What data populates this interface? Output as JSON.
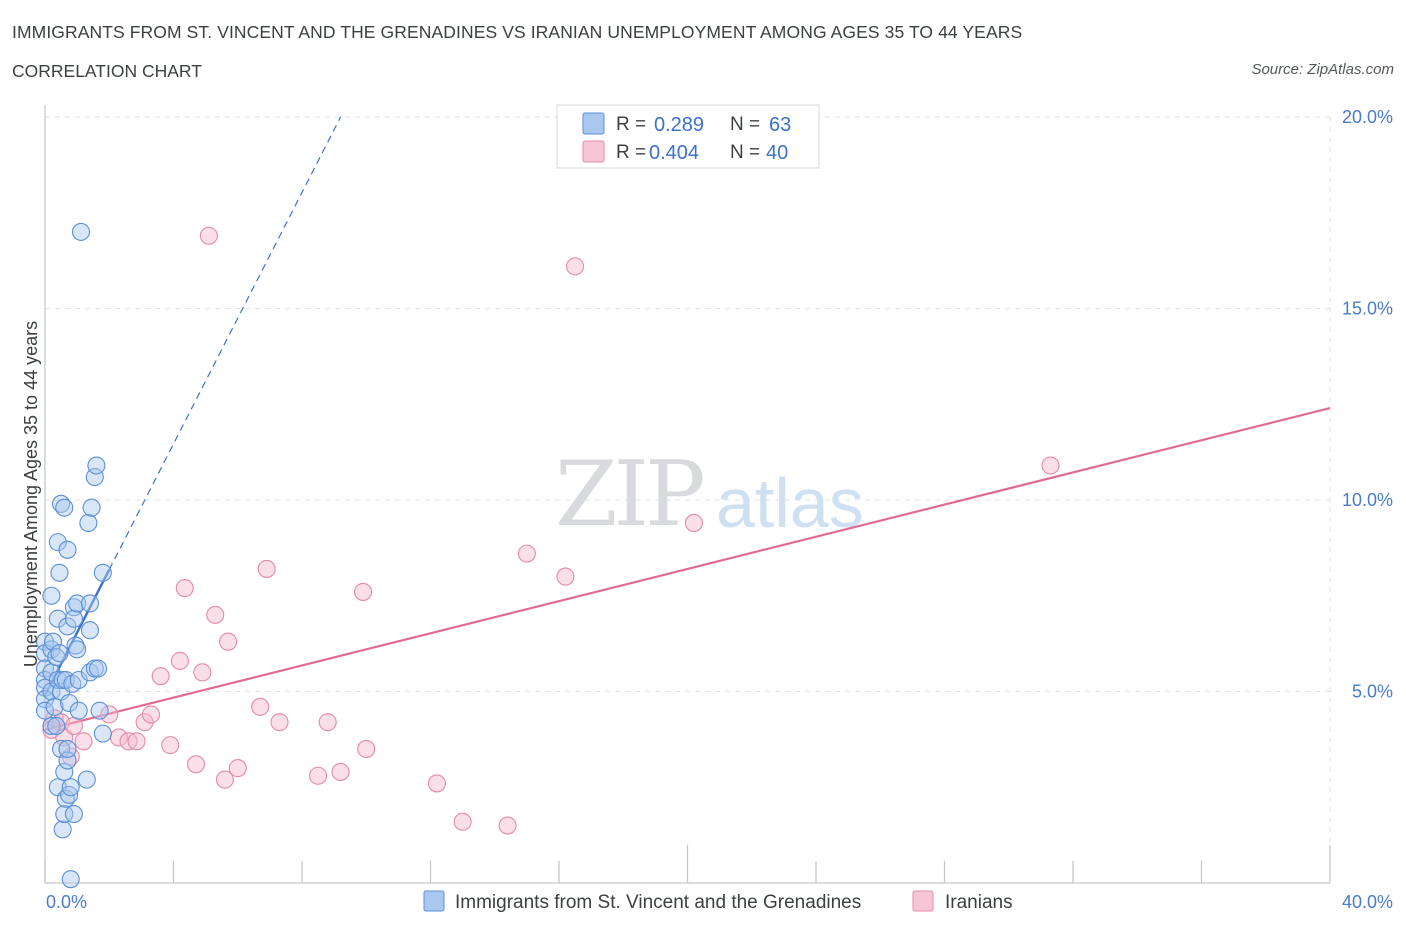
{
  "header": {
    "title": "IMMIGRANTS FROM ST. VINCENT AND THE GRENADINES VS IRANIAN UNEMPLOYMENT AMONG AGES 35 TO 44 YEARS",
    "subtitle": "CORRELATION CHART",
    "source": "Source: ZipAtlas.com"
  },
  "watermark": {
    "zip": "ZIP",
    "atlas": "atlas"
  },
  "colors": {
    "blue_fill": "#a8c8f0",
    "blue_stroke": "#5b8fd6",
    "blue_line": "#3a73d0",
    "pink_fill": "#f6b8cc",
    "pink_stroke": "#e58aa9",
    "pink_line": "#e06b93",
    "grid": "#dde1e6",
    "axis_text": "#4a7cc9"
  },
  "chart_data": {
    "type": "scatter",
    "title": "IMMIGRANTS FROM ST. VINCENT AND THE GRENADINES VS IRANIAN UNEMPLOYMENT AMONG AGES 35 TO 44 YEARS",
    "xlabel": "",
    "ylabel": "Unemployment Among Ages 35 to 44 years",
    "xlim": [
      0,
      40
    ],
    "ylim": [
      0,
      20
    ],
    "x_tick_labels": [
      "0.0%",
      "40.0%"
    ],
    "y_ticks": [
      5,
      10,
      15,
      20
    ],
    "y_tick_labels": [
      "5.0%",
      "10.0%",
      "15.0%",
      "20.0%"
    ],
    "legend_position": "top-center",
    "stats": [
      {
        "series": "Immigrants from St. Vincent and the Grenadines",
        "r_label": "R =",
        "r": "0.289",
        "n_label": "N =",
        "n": "63"
      },
      {
        "series": "Iranians",
        "r_label": "R =",
        "r": "0.404",
        "n_label": "N =",
        "n": "40"
      }
    ],
    "series": [
      {
        "name": "Immigrants from St. Vincent and the Grenadines",
        "color": "blue",
        "points": [
          [
            1.12,
            17.0
          ],
          [
            0.0,
            6.3
          ],
          [
            0.0,
            6.0
          ],
          [
            0.0,
            5.6
          ],
          [
            0.0,
            5.3
          ],
          [
            0.0,
            5.1
          ],
          [
            0.0,
            4.8
          ],
          [
            0.0,
            4.5
          ],
          [
            0.2,
            7.5
          ],
          [
            0.2,
            6.1
          ],
          [
            0.2,
            5.5
          ],
          [
            0.2,
            5.0
          ],
          [
            0.2,
            4.1
          ],
          [
            0.25,
            6.3
          ],
          [
            0.3,
            4.6
          ],
          [
            0.35,
            5.9
          ],
          [
            0.35,
            4.1
          ],
          [
            0.4,
            8.9
          ],
          [
            0.4,
            6.9
          ],
          [
            0.4,
            5.3
          ],
          [
            0.4,
            2.5
          ],
          [
            0.45,
            8.1
          ],
          [
            0.45,
            6.0
          ],
          [
            0.5,
            9.9
          ],
          [
            0.5,
            5.0
          ],
          [
            0.5,
            3.5
          ],
          [
            0.55,
            5.3
          ],
          [
            0.55,
            1.4
          ],
          [
            0.6,
            9.8
          ],
          [
            0.6,
            1.8
          ],
          [
            0.6,
            2.9
          ],
          [
            0.65,
            5.3
          ],
          [
            0.65,
            2.2
          ],
          [
            0.7,
            8.7
          ],
          [
            0.7,
            6.7
          ],
          [
            0.7,
            3.2
          ],
          [
            0.7,
            3.5
          ],
          [
            0.75,
            4.7
          ],
          [
            0.75,
            2.3
          ],
          [
            0.8,
            2.5
          ],
          [
            0.8,
            0.1
          ],
          [
            0.85,
            5.2
          ],
          [
            0.9,
            1.8
          ],
          [
            0.9,
            7.2
          ],
          [
            0.9,
            6.9
          ],
          [
            0.95,
            6.2
          ],
          [
            1.0,
            7.3
          ],
          [
            1.0,
            6.1
          ],
          [
            1.05,
            5.3
          ],
          [
            1.05,
            4.5
          ],
          [
            1.3,
            2.7
          ],
          [
            1.35,
            9.4
          ],
          [
            1.4,
            5.5
          ],
          [
            1.4,
            6.6
          ],
          [
            1.4,
            7.3
          ],
          [
            1.45,
            9.8
          ],
          [
            1.55,
            10.6
          ],
          [
            1.6,
            10.9
          ],
          [
            1.55,
            5.6
          ],
          [
            1.65,
            5.6
          ],
          [
            1.7,
            4.5
          ],
          [
            1.8,
            3.9
          ],
          [
            1.8,
            8.1
          ]
        ],
        "trend": {
          "x_start": 0.0,
          "y_start": 4.9,
          "x_solid_end": 2.0,
          "x_dash_end": 9.2,
          "y_dash_end": 20.0
        }
      },
      {
        "name": "Iranians",
        "color": "pink",
        "points": [
          [
            0.2,
            4.0
          ],
          [
            0.3,
            4.3
          ],
          [
            0.5,
            4.2
          ],
          [
            0.6,
            3.8
          ],
          [
            0.8,
            3.3
          ],
          [
            0.9,
            4.1
          ],
          [
            1.2,
            3.7
          ],
          [
            2.0,
            4.4
          ],
          [
            2.3,
            3.8
          ],
          [
            2.6,
            3.7
          ],
          [
            2.85,
            3.7
          ],
          [
            3.1,
            4.2
          ],
          [
            3.3,
            4.4
          ],
          [
            3.6,
            5.4
          ],
          [
            3.9,
            3.6
          ],
          [
            4.2,
            5.8
          ],
          [
            4.35,
            7.7
          ],
          [
            4.7,
            3.1
          ],
          [
            4.9,
            5.5
          ],
          [
            5.1,
            16.9
          ],
          [
            5.3,
            7.0
          ],
          [
            5.6,
            2.7
          ],
          [
            5.7,
            6.3
          ],
          [
            6.0,
            3.0
          ],
          [
            6.7,
            4.6
          ],
          [
            6.9,
            8.2
          ],
          [
            7.3,
            4.2
          ],
          [
            8.5,
            2.8
          ],
          [
            8.8,
            4.2
          ],
          [
            9.2,
            2.9
          ],
          [
            9.9,
            7.6
          ],
          [
            10.0,
            3.5
          ],
          [
            12.2,
            2.6
          ],
          [
            13.0,
            1.6
          ],
          [
            14.4,
            1.5
          ],
          [
            15.0,
            8.6
          ],
          [
            16.2,
            8.0
          ],
          [
            16.5,
            16.1
          ],
          [
            20.2,
            9.4
          ],
          [
            31.3,
            10.9
          ]
        ],
        "trend": {
          "x_start": 0.0,
          "y_start": 4.0,
          "x_end": 40.0,
          "y_end": 12.4
        }
      }
    ]
  }
}
